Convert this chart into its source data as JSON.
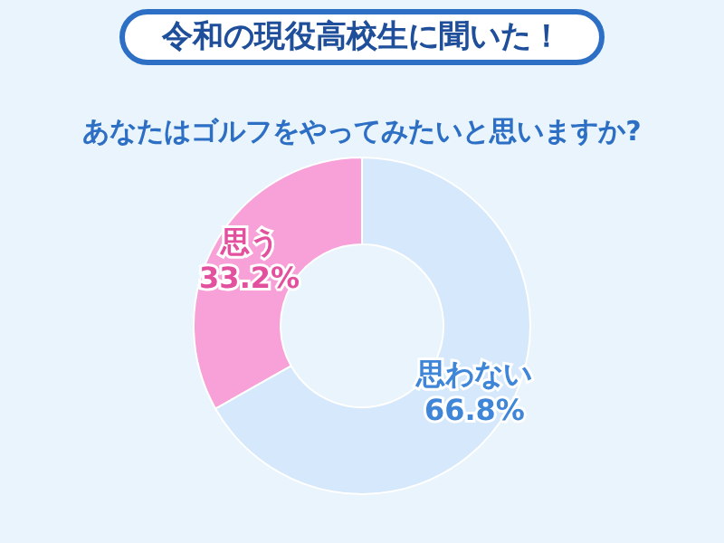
{
  "chart_data": {
    "type": "donut",
    "title": "令和の現役高校生に聞いた！",
    "subtitle": "あなたはゴルフをやってみたいと思いますか?",
    "categories": [
      "思う",
      "思わない"
    ],
    "values": [
      33.2,
      66.8
    ],
    "colors": [
      "#f7a1d8",
      "#d6e8fb"
    ],
    "value_labels": [
      "33.2%",
      "66.8%"
    ],
    "legend": false
  }
}
